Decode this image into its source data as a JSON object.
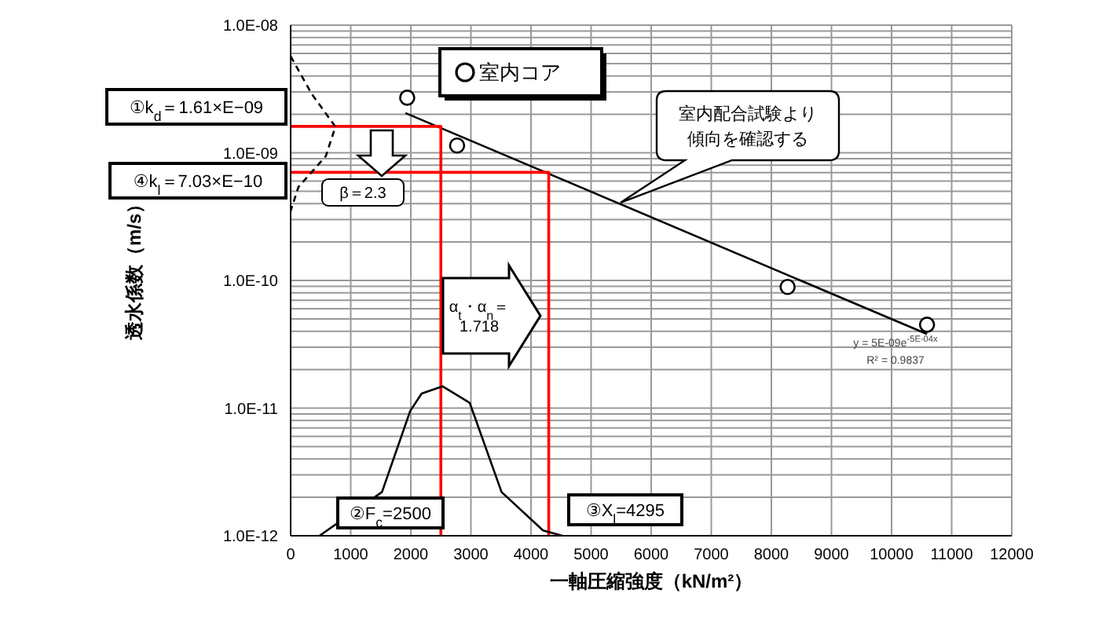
{
  "chart_data": {
    "type": "scatter",
    "xlabel": "一軸圧縮強度（kN/m²）",
    "ylabel": "透水係数（m/s）",
    "xlim": [
      0,
      12000
    ],
    "xticks": [
      0,
      1000,
      2000,
      3000,
      4000,
      5000,
      6000,
      7000,
      8000,
      9000,
      10000,
      11000,
      12000
    ],
    "ylim": [
      1e-12,
      1e-08
    ],
    "yticks": [
      {
        "value": 1e-12,
        "label": "1.0E-12"
      },
      {
        "value": 1e-11,
        "label": "1.0E-11"
      },
      {
        "value": 1e-10,
        "label": "1.0E-10"
      },
      {
        "value": 1e-09,
        "label": "1.0E-09"
      },
      {
        "value": 1e-08,
        "label": "1.0E-08"
      }
    ],
    "log": "y",
    "grid": true,
    "legend": "top left",
    "series": [
      {
        "name": "室内コア",
        "marker": "circle",
        "color": "#000000",
        "x": [
          1940,
          2770,
          8270,
          10590
        ],
        "values": [
          2.7e-09,
          1.14e-09,
          8.9e-11,
          4.5e-11
        ]
      },
      {
        "type": "line",
        "marker": "none",
        "color": "#000000",
        "x": [
          1910,
          10590
        ],
        "values": [
          2.05e-09,
          3.8e-11
        ]
      },
      {
        "type": "line",
        "marker": "none",
        "color": "#ff0000",
        "x": [
          0,
          2500,
          2500
        ],
        "values": [
          1.61e-09,
          1.61e-09,
          1e-12
        ]
      },
      {
        "type": "line",
        "marker": "none",
        "color": "#ff0000",
        "x": [
          0,
          4295,
          4295
        ],
        "values": [
          7.03e-10,
          7.03e-10,
          1e-12
        ]
      },
      {
        "type": "line",
        "marker": "none",
        "color": "#000000",
        "x": [
          480,
          1520,
          1990,
          2180,
          2530,
          2980,
          3510,
          4200,
          4520
        ],
        "values": [
          1e-12,
          2.2e-12,
          9.5e-12,
          1.3e-11,
          1.48e-11,
          1.1e-11,
          2.2e-12,
          1.1e-12,
          1e-12
        ]
      },
      {
        "type": "line",
        "marker": "none",
        "line_style": "dashed",
        "color": "#000000",
        "x": [
          0,
          350,
          745,
          585,
          130,
          0
        ],
        "values": [
          5.7e-09,
          2.9e-09,
          1.6e-09,
          9.4e-10,
          5.4e-10,
          3.5e-10
        ]
      }
    ],
    "annotations": [
      "①k$_{d}$＝1.61×E−09",
      "④k$_{l}$＝7.03×E−10",
      "β＝2.3",
      "α$_{t}$・α$_{n}$＝\n1.718",
      "②F$_{c}$=2500",
      "③X$_{l}$=4295",
      "室内配合試験より",
      "傾向を確認する",
      "y = 5E-09e$^{-5E-04x}$",
      "R² = 0.9837"
    ]
  }
}
